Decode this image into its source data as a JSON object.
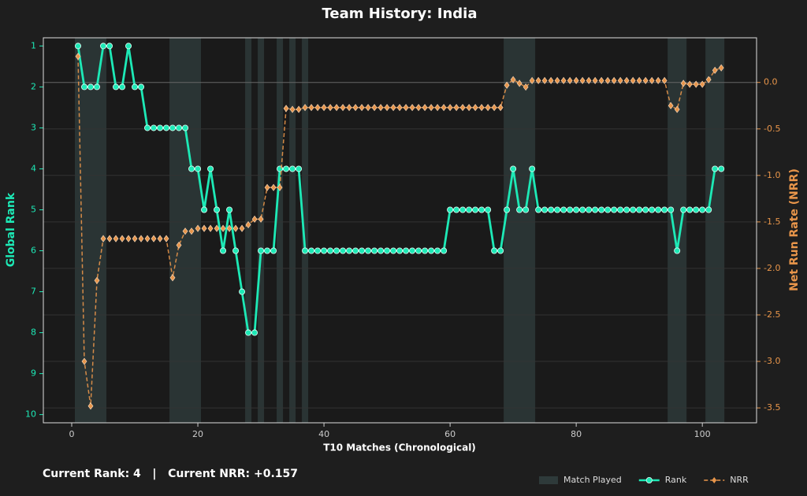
{
  "chart_data": {
    "type": "line",
    "title": "Team History: India",
    "xlabel": "T10 Matches (Chronological)",
    "ylabel": "Global Rank",
    "y2label": "Net Run Rate (NRR)",
    "footer": "Current Rank: 4   |   Current NRR: +0.157",
    "x": [
      1,
      2,
      3,
      4,
      5,
      6,
      7,
      8,
      9,
      10,
      11,
      12,
      13,
      14,
      15,
      16,
      17,
      18,
      19,
      20,
      21,
      22,
      23,
      24,
      25,
      26,
      27,
      28,
      29,
      30,
      31,
      32,
      33,
      34,
      35,
      36,
      37,
      38,
      39,
      40,
      41,
      42,
      43,
      44,
      45,
      46,
      47,
      48,
      49,
      50,
      51,
      52,
      53,
      54,
      55,
      56,
      57,
      58,
      59,
      60,
      61,
      62,
      63,
      64,
      65,
      66,
      67,
      68,
      69,
      70,
      71,
      72,
      73,
      74,
      75,
      76,
      77,
      78,
      79,
      80,
      81,
      82,
      83,
      84,
      85,
      86,
      87,
      88,
      89,
      90,
      91,
      92,
      93,
      94,
      95,
      96,
      97,
      98,
      99,
      100,
      101,
      102,
      103
    ],
    "series": [
      {
        "name": "Rank",
        "color": "#1de9b6",
        "marker": "circle",
        "dashed": false,
        "values": [
          1,
          2,
          2,
          2,
          1,
          1,
          2,
          2,
          1,
          2,
          2,
          3,
          3,
          3,
          3,
          3,
          3,
          3,
          4,
          4,
          5,
          4,
          5,
          6,
          5,
          6,
          7,
          8,
          8,
          6,
          6,
          6,
          4,
          4,
          4,
          4,
          6,
          6,
          6,
          6,
          6,
          6,
          6,
          6,
          6,
          6,
          6,
          6,
          6,
          6,
          6,
          6,
          6,
          6,
          6,
          6,
          6,
          6,
          6,
          5,
          5,
          5,
          5,
          5,
          5,
          5,
          6,
          6,
          5,
          4,
          5,
          5,
          4,
          5,
          5,
          5,
          5,
          5,
          5,
          5,
          5,
          5,
          5,
          5,
          5,
          5,
          5,
          5,
          5,
          5,
          5,
          5,
          5,
          5,
          5,
          6,
          5,
          5,
          5,
          5,
          5,
          4,
          4
        ]
      },
      {
        "name": "NRR",
        "color": "#e8954a",
        "marker": "diamond",
        "dashed": true,
        "axis": "y2",
        "values": [
          0.28,
          -3.0,
          -3.48,
          -2.13,
          -1.68,
          -1.68,
          -1.68,
          -1.68,
          -1.68,
          -1.68,
          -1.68,
          -1.68,
          -1.68,
          -1.68,
          -1.68,
          -2.1,
          -1.75,
          -1.6,
          -1.6,
          -1.57,
          -1.57,
          -1.57,
          -1.57,
          -1.57,
          -1.57,
          -1.57,
          -1.57,
          -1.53,
          -1.47,
          -1.47,
          -1.13,
          -1.13,
          -1.13,
          -0.28,
          -0.29,
          -0.29,
          -0.27,
          -0.27,
          -0.27,
          -0.27,
          -0.27,
          -0.27,
          -0.27,
          -0.27,
          -0.27,
          -0.27,
          -0.27,
          -0.27,
          -0.27,
          -0.27,
          -0.27,
          -0.27,
          -0.27,
          -0.27,
          -0.27,
          -0.27,
          -0.27,
          -0.27,
          -0.27,
          -0.27,
          -0.27,
          -0.27,
          -0.27,
          -0.27,
          -0.27,
          -0.27,
          -0.27,
          -0.27,
          -0.03,
          0.03,
          -0.01,
          -0.05,
          0.02,
          0.02,
          0.02,
          0.02,
          0.02,
          0.02,
          0.02,
          0.02,
          0.02,
          0.02,
          0.02,
          0.02,
          0.02,
          0.02,
          0.02,
          0.02,
          0.02,
          0.02,
          0.02,
          0.02,
          0.02,
          0.02,
          -0.25,
          -0.29,
          -0.01,
          -0.02,
          -0.02,
          -0.02,
          0.03,
          0.13,
          0.157
        ]
      }
    ],
    "highlight": {
      "name": "Match Played",
      "color": "#2e3a3a",
      "ranges": [
        [
          0.5,
          5.5
        ],
        [
          15.5,
          20.5
        ],
        [
          27.5,
          28.5
        ],
        [
          29.5,
          30.5
        ],
        [
          32.5,
          33.5
        ],
        [
          34.5,
          35.5
        ],
        [
          36.5,
          37.5
        ],
        [
          68.5,
          73.5
        ],
        [
          94.5,
          97.5
        ],
        [
          100.5,
          103.5
        ]
      ]
    },
    "xlim": [
      -4.5,
      108.6
    ],
    "xticks": [
      0,
      20,
      40,
      60,
      80,
      100
    ],
    "ylim": [
      10.2,
      0.8
    ],
    "yticks": [
      1,
      2,
      3,
      4,
      5,
      6,
      7,
      8,
      9,
      10
    ],
    "y2lim": [
      -3.66,
      0.48
    ],
    "y2ticks": [
      {
        "value": 0,
        "label": "0.0"
      },
      -0.5,
      {
        "value": -1,
        "label": "-1.0"
      },
      -1.5,
      {
        "value": -2,
        "label": "-2.0"
      },
      -2.5,
      {
        "value": -3,
        "label": "-3.0"
      },
      -3.5
    ],
    "grid": true
  }
}
